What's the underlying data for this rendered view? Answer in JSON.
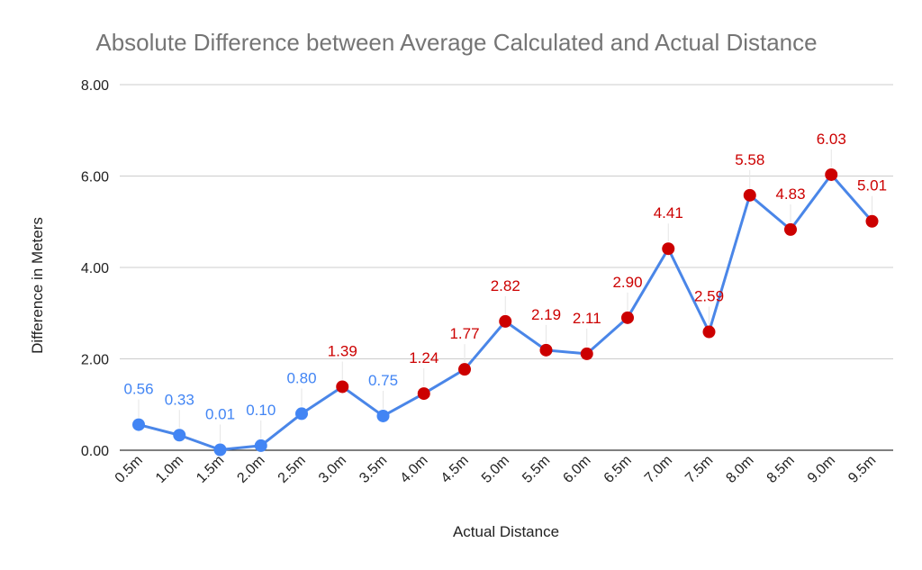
{
  "chart_data": {
    "type": "line",
    "title": "Absolute Difference between Average Calculated and Actual Distance",
    "xlabel": "Actual Distance",
    "ylabel": "Difference in Meters",
    "categories": [
      "0.5m",
      "1.0m",
      "1.5m",
      "2.0m",
      "2.5m",
      "3.0m",
      "3.5m",
      "4.0m",
      "4.5m",
      "5.0m",
      "5.5m",
      "6.0m",
      "6.5m",
      "7.0m",
      "7.5m",
      "8.0m",
      "8.5m",
      "9.0m",
      "9.5m"
    ],
    "values": [
      0.56,
      0.33,
      0.01,
      0.1,
      0.8,
      1.39,
      0.75,
      1.24,
      1.77,
      2.82,
      2.19,
      2.11,
      2.9,
      4.41,
      2.59,
      5.58,
      4.83,
      6.03,
      5.01
    ],
    "data_labels": [
      "0.56",
      "0.33",
      "0.01",
      "0.10",
      "0.80",
      "1.39",
      "0.75",
      "1.24",
      "1.77",
      "2.82",
      "2.19",
      "2.11",
      "2.90",
      "4.41",
      "2.59",
      "5.58",
      "4.83",
      "6.03",
      "5.01"
    ],
    "point_colors": [
      "#4285f4",
      "#4285f4",
      "#4285f4",
      "#4285f4",
      "#4285f4",
      "#cc0000",
      "#4285f4",
      "#cc0000",
      "#cc0000",
      "#cc0000",
      "#cc0000",
      "#cc0000",
      "#cc0000",
      "#cc0000",
      "#cc0000",
      "#cc0000",
      "#cc0000",
      "#cc0000",
      "#cc0000"
    ],
    "y_ticks": [
      "0.00",
      "2.00",
      "4.00",
      "6.00",
      "8.00"
    ],
    "ylim": [
      0,
      8
    ],
    "grid": true,
    "legend": "none",
    "line_color": "#4a86e8",
    "gridline_color": "#cccccc"
  }
}
